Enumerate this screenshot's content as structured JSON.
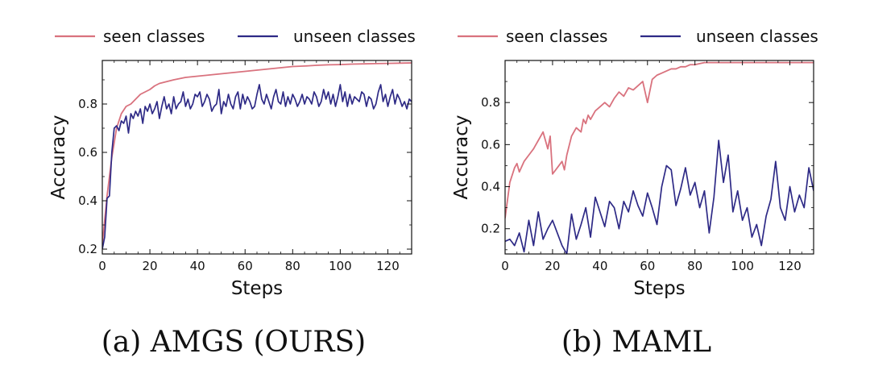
{
  "colors": {
    "seen": "#d9727e",
    "unseen": "#2e2a86",
    "axis": "#111111"
  },
  "chart_data": [
    {
      "type": "line",
      "caption": "(a)  AMGS (OURS)",
      "xlabel": "Steps",
      "ylabel": "Accuracy",
      "xlim": [
        0,
        130
      ],
      "ylim": [
        0.18,
        0.98
      ],
      "xticks": [
        0,
        20,
        40,
        60,
        80,
        100,
        120
      ],
      "yticks": [
        0.2,
        0.4,
        0.6,
        0.8
      ],
      "ytick_labels": [
        "0.2",
        "0.4",
        "0.6",
        "0.8"
      ],
      "legend": {
        "placement": "top",
        "entries": [
          "seen classes",
          "unseen classes"
        ]
      },
      "series": [
        {
          "name": "seen classes",
          "key": "seen",
          "x": [
            0,
            2,
            4,
            6,
            8,
            10,
            12,
            14,
            16,
            18,
            20,
            22,
            24,
            26,
            28,
            30,
            35,
            40,
            45,
            50,
            55,
            60,
            65,
            70,
            75,
            80,
            85,
            90,
            95,
            100,
            105,
            110,
            115,
            120,
            125,
            130
          ],
          "y": [
            0.22,
            0.42,
            0.58,
            0.7,
            0.76,
            0.79,
            0.8,
            0.82,
            0.84,
            0.85,
            0.86,
            0.875,
            0.885,
            0.89,
            0.895,
            0.9,
            0.91,
            0.915,
            0.92,
            0.925,
            0.93,
            0.935,
            0.94,
            0.945,
            0.95,
            0.955,
            0.957,
            0.96,
            0.962,
            0.963,
            0.965,
            0.966,
            0.967,
            0.968,
            0.969,
            0.97
          ]
        },
        {
          "name": "unseen classes",
          "key": "unseen",
          "x": [
            0,
            1,
            2,
            3,
            4,
            5,
            6,
            7,
            8,
            9,
            10,
            11,
            12,
            13,
            14,
            15,
            16,
            17,
            18,
            19,
            20,
            21,
            22,
            23,
            24,
            25,
            26,
            27,
            28,
            29,
            30,
            31,
            32,
            33,
            34,
            35,
            36,
            37,
            38,
            39,
            40,
            41,
            42,
            43,
            44,
            45,
            46,
            47,
            48,
            49,
            50,
            51,
            52,
            53,
            54,
            55,
            56,
            57,
            58,
            59,
            60,
            61,
            62,
            63,
            64,
            65,
            66,
            67,
            68,
            69,
            70,
            71,
            72,
            73,
            74,
            75,
            76,
            77,
            78,
            79,
            80,
            81,
            82,
            83,
            84,
            85,
            86,
            87,
            88,
            89,
            90,
            91,
            92,
            93,
            94,
            95,
            96,
            97,
            98,
            99,
            100,
            101,
            102,
            103,
            104,
            105,
            106,
            107,
            108,
            109,
            110,
            111,
            112,
            113,
            114,
            115,
            116,
            117,
            118,
            119,
            120,
            121,
            122,
            123,
            124,
            125,
            126,
            127,
            128,
            129,
            130
          ],
          "y": [
            0.2,
            0.25,
            0.41,
            0.42,
            0.6,
            0.7,
            0.71,
            0.69,
            0.73,
            0.72,
            0.75,
            0.68,
            0.76,
            0.74,
            0.77,
            0.75,
            0.78,
            0.72,
            0.79,
            0.77,
            0.8,
            0.76,
            0.78,
            0.81,
            0.74,
            0.79,
            0.83,
            0.78,
            0.8,
            0.76,
            0.83,
            0.78,
            0.8,
            0.81,
            0.85,
            0.79,
            0.82,
            0.78,
            0.8,
            0.84,
            0.83,
            0.85,
            0.79,
            0.81,
            0.84,
            0.82,
            0.77,
            0.79,
            0.8,
            0.86,
            0.76,
            0.81,
            0.79,
            0.84,
            0.8,
            0.78,
            0.83,
            0.85,
            0.78,
            0.84,
            0.8,
            0.83,
            0.81,
            0.78,
            0.79,
            0.84,
            0.88,
            0.82,
            0.8,
            0.84,
            0.81,
            0.78,
            0.83,
            0.86,
            0.81,
            0.8,
            0.85,
            0.79,
            0.83,
            0.8,
            0.84,
            0.82,
            0.79,
            0.81,
            0.84,
            0.8,
            0.83,
            0.82,
            0.8,
            0.85,
            0.83,
            0.79,
            0.81,
            0.86,
            0.82,
            0.85,
            0.8,
            0.84,
            0.79,
            0.83,
            0.88,
            0.81,
            0.85,
            0.79,
            0.84,
            0.8,
            0.83,
            0.82,
            0.81,
            0.85,
            0.84,
            0.79,
            0.83,
            0.82,
            0.78,
            0.8,
            0.85,
            0.88,
            0.81,
            0.84,
            0.79,
            0.83,
            0.86,
            0.8,
            0.84,
            0.82,
            0.79,
            0.81,
            0.78,
            0.82,
            0.81
          ]
        }
      ]
    },
    {
      "type": "line",
      "caption": "(b)  MAML",
      "xlabel": "Steps",
      "ylabel": "Accuracy",
      "xlim": [
        0,
        130
      ],
      "ylim": [
        0.08,
        1.0
      ],
      "xticks": [
        0,
        20,
        40,
        60,
        80,
        100,
        120
      ],
      "yticks": [
        0.2,
        0.4,
        0.6,
        0.8
      ],
      "ytick_labels": [
        "0.2",
        "0.4",
        "0.6",
        "0.8"
      ],
      "legend": {
        "placement": "top",
        "entries": [
          "seen classes",
          "unseen classes"
        ]
      },
      "series": [
        {
          "name": "seen classes",
          "key": "seen",
          "x": [
            0,
            2,
            4,
            5,
            6,
            8,
            10,
            12,
            13,
            14,
            15,
            16,
            17,
            18,
            19,
            20,
            22,
            24,
            25,
            26,
            28,
            30,
            32,
            33,
            34,
            35,
            36,
            38,
            40,
            42,
            44,
            46,
            48,
            50,
            52,
            54,
            56,
            58,
            60,
            62,
            64,
            66,
            68,
            70,
            72,
            74,
            76,
            78,
            80,
            82,
            84,
            86,
            88,
            90,
            92,
            94,
            96,
            98,
            100,
            105,
            110,
            115,
            120,
            125,
            130
          ],
          "y": [
            0.25,
            0.42,
            0.49,
            0.51,
            0.47,
            0.52,
            0.55,
            0.58,
            0.6,
            0.62,
            0.64,
            0.66,
            0.62,
            0.58,
            0.64,
            0.46,
            0.49,
            0.52,
            0.48,
            0.55,
            0.64,
            0.68,
            0.66,
            0.72,
            0.7,
            0.74,
            0.72,
            0.76,
            0.78,
            0.8,
            0.78,
            0.82,
            0.85,
            0.83,
            0.87,
            0.86,
            0.88,
            0.9,
            0.8,
            0.91,
            0.93,
            0.94,
            0.95,
            0.96,
            0.96,
            0.97,
            0.97,
            0.98,
            0.98,
            0.985,
            0.99,
            0.99,
            0.99,
            0.99,
            0.99,
            0.99,
            0.99,
            0.99,
            0.99,
            0.99,
            0.99,
            0.99,
            0.99,
            0.99,
            0.99
          ]
        },
        {
          "name": "unseen classes",
          "key": "unseen",
          "x": [
            0,
            2,
            4,
            6,
            8,
            10,
            12,
            14,
            16,
            18,
            20,
            22,
            24,
            26,
            28,
            30,
            32,
            34,
            36,
            38,
            40,
            42,
            44,
            46,
            48,
            50,
            52,
            54,
            56,
            58,
            60,
            62,
            64,
            66,
            68,
            70,
            72,
            74,
            76,
            78,
            80,
            82,
            84,
            86,
            88,
            90,
            92,
            94,
            96,
            98,
            100,
            102,
            104,
            106,
            108,
            110,
            112,
            114,
            116,
            118,
            120,
            122,
            124,
            126,
            128,
            130
          ],
          "y": [
            0.14,
            0.15,
            0.12,
            0.18,
            0.09,
            0.24,
            0.12,
            0.28,
            0.15,
            0.2,
            0.24,
            0.18,
            0.12,
            0.08,
            0.27,
            0.15,
            0.22,
            0.3,
            0.16,
            0.35,
            0.28,
            0.21,
            0.33,
            0.3,
            0.2,
            0.33,
            0.28,
            0.38,
            0.31,
            0.26,
            0.37,
            0.3,
            0.22,
            0.4,
            0.5,
            0.48,
            0.31,
            0.39,
            0.49,
            0.36,
            0.42,
            0.3,
            0.38,
            0.18,
            0.35,
            0.62,
            0.42,
            0.55,
            0.28,
            0.38,
            0.24,
            0.3,
            0.16,
            0.22,
            0.12,
            0.26,
            0.34,
            0.52,
            0.3,
            0.24,
            0.4,
            0.28,
            0.36,
            0.3,
            0.49,
            0.38
          ]
        }
      ]
    }
  ]
}
